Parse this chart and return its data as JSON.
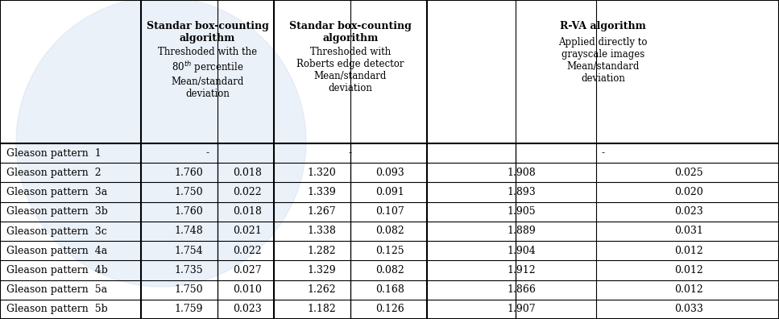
{
  "col_headers": [
    [
      "Standar box-counting\nalgorithm",
      "Threshoded with the\n80th percentile\nMean/standard\ndeviation"
    ],
    [
      "Standar box-counting\nalgorithm",
      "Threshoded with\nRoberts edge detector\nMean/standard\ndeviation"
    ],
    [
      "R-VA algorithm",
      "Applied directly to\ngrayscale images\nMean/standard\ndeviation"
    ]
  ],
  "row_labels": [
    "Gleason pattern  1",
    "Gleason pattern  2",
    "Gleason pattern  3a",
    "Gleason pattern  3b",
    "Gleason pattern  3c",
    "Gleason pattern  4a",
    "Gleason pattern  4b",
    "Gleason pattern  5a",
    "Gleason pattern  5b"
  ],
  "data": [
    [
      "-",
      "",
      "-",
      "",
      "-",
      ""
    ],
    [
      "1.760",
      "0.018",
      "1.320",
      "0.093",
      "1.908",
      "0.025"
    ],
    [
      "1.750",
      "0.022",
      "1.339",
      "0.091",
      "1.893",
      "0.020"
    ],
    [
      "1.760",
      "0.018",
      "1.267",
      "0.107",
      "1.905",
      "0.023"
    ],
    [
      "1.748",
      "0.021",
      "1.338",
      "0.082",
      "1.889",
      "0.031"
    ],
    [
      "1.754",
      "0.022",
      "1.282",
      "0.125",
      "1.904",
      "0.012"
    ],
    [
      "1.735",
      "0.027",
      "1.329",
      "0.082",
      "1.912",
      "0.012"
    ],
    [
      "1.750",
      "0.010",
      "1.262",
      "0.168",
      "1.866",
      "0.012"
    ],
    [
      "1.759",
      "0.023",
      "1.182",
      "0.126",
      "1.907",
      "0.033"
    ]
  ],
  "superscript_row": 0,
  "superscript_col": 0,
  "bg_color": "#ffffff",
  "header_bg": "#ffffff",
  "border_color": "#000000",
  "text_color": "#000000",
  "watermark_color": "#c8d8f0"
}
